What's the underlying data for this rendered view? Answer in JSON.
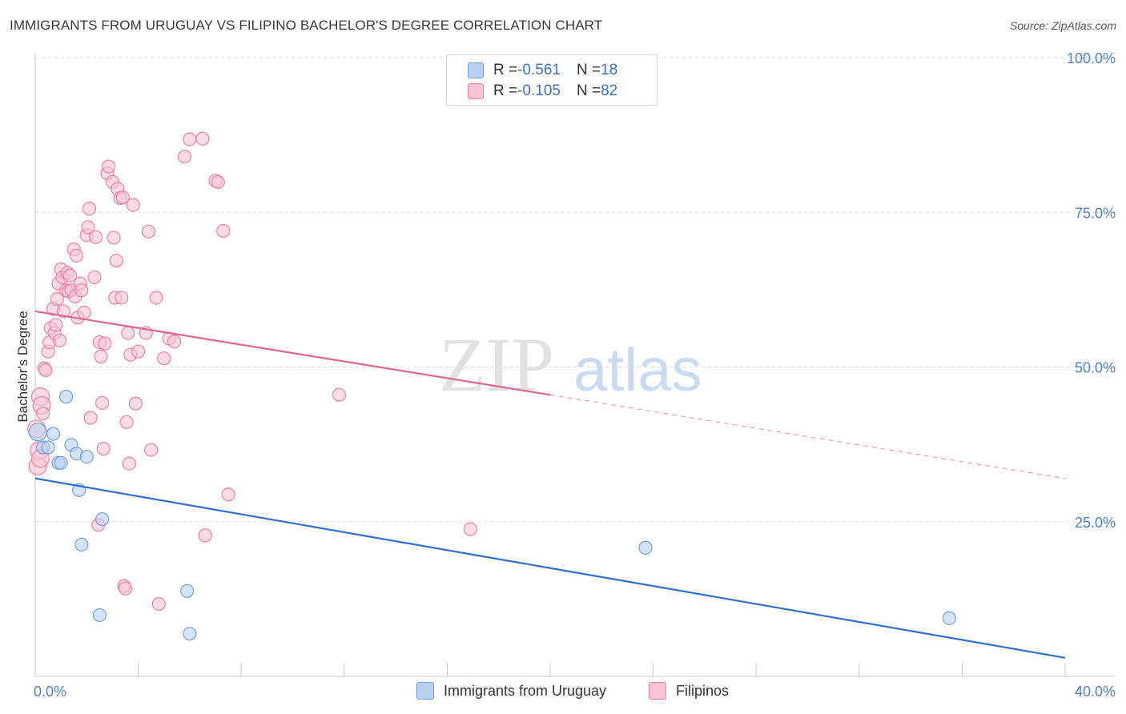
{
  "title": "IMMIGRANTS FROM URUGUAY VS FILIPINO BACHELOR'S DEGREE CORRELATION CHART",
  "source": "Source: ZipAtlas.com",
  "watermark": {
    "zip": "ZIP",
    "atlas": "atlas"
  },
  "legend_top": {
    "rows": [
      {
        "r_label": "R = ",
        "r_value": "-0.561",
        "n_label": "N = ",
        "n_value": "18"
      },
      {
        "r_label": "R = ",
        "r_value": "-0.105",
        "n_label": "N = ",
        "n_value": "82"
      }
    ]
  },
  "chart_data": {
    "type": "scatter",
    "title": "IMMIGRANTS FROM URUGUAY VS FILIPINO BACHELOR'S DEGREE CORRELATION CHART",
    "xlabel": "",
    "ylabel": "Bachelor's Degree",
    "xlim": [
      0,
      40
    ],
    "ylim": [
      0,
      100
    ],
    "x_tick_labels": [
      {
        "value": 0,
        "label": "0.0%"
      },
      {
        "value": 40,
        "label": "40.0%"
      }
    ],
    "y_tick_labels": [
      {
        "value": 25,
        "label": "25.0%"
      },
      {
        "value": 50,
        "label": "50.0%"
      },
      {
        "value": 75,
        "label": "75.0%"
      },
      {
        "value": 100,
        "label": "100.0%"
      }
    ],
    "grid": true,
    "series": [
      {
        "name": "Immigrants from Uruguay",
        "color": "#6fa0de",
        "fill": "#b9d0f2",
        "points": [
          [
            0.1,
            39.5
          ],
          [
            0.3,
            37
          ],
          [
            0.5,
            37
          ],
          [
            0.7,
            39.2
          ],
          [
            0.9,
            34.5
          ],
          [
            1.0,
            34.5
          ],
          [
            1.2,
            45.2
          ],
          [
            1.4,
            37.4
          ],
          [
            1.6,
            36
          ],
          [
            1.7,
            30.1
          ],
          [
            1.8,
            21.3
          ],
          [
            2.0,
            35.5
          ],
          [
            2.5,
            9.9
          ],
          [
            2.6,
            25.4
          ],
          [
            5.9,
            13.8
          ],
          [
            6.0,
            6.9
          ],
          [
            23.7,
            20.8
          ],
          [
            35.5,
            9.4
          ]
        ],
        "trend": {
          "x": [
            0,
            40
          ],
          "y": [
            32,
            3
          ],
          "dashed_from": null
        }
      },
      {
        "name": "Filipinos",
        "color": "#ec7fa3",
        "fill": "#f8c3d4",
        "points": [
          [
            0.05,
            40
          ],
          [
            0.1,
            34
          ],
          [
            0.2,
            45.2
          ],
          [
            0.25,
            43.8
          ],
          [
            0.35,
            49.8
          ],
          [
            0.4,
            49.5
          ],
          [
            0.5,
            52.5
          ],
          [
            0.55,
            54
          ],
          [
            0.6,
            56.3
          ],
          [
            0.7,
            59.4
          ],
          [
            0.75,
            55.5
          ],
          [
            0.8,
            56.8
          ],
          [
            0.85,
            61
          ],
          [
            0.9,
            63.5
          ],
          [
            0.95,
            54.3
          ],
          [
            1.0,
            65.8
          ],
          [
            1.05,
            64.5
          ],
          [
            1.1,
            59
          ],
          [
            1.2,
            62.4
          ],
          [
            1.25,
            65.2
          ],
          [
            1.3,
            62.2
          ],
          [
            1.35,
            64.8
          ],
          [
            1.4,
            62.4
          ],
          [
            1.5,
            69
          ],
          [
            1.55,
            61.4
          ],
          [
            1.6,
            68
          ],
          [
            1.65,
            58
          ],
          [
            1.75,
            63.5
          ],
          [
            1.8,
            62.4
          ],
          [
            1.9,
            58.8
          ],
          [
            2.0,
            71.3
          ],
          [
            2.05,
            72.6
          ],
          [
            2.1,
            75.6
          ],
          [
            2.15,
            41.8
          ],
          [
            2.3,
            64.5
          ],
          [
            2.35,
            71
          ],
          [
            2.45,
            24.5
          ],
          [
            2.5,
            54
          ],
          [
            2.55,
            51.7
          ],
          [
            2.6,
            44.2
          ],
          [
            2.65,
            36.8
          ],
          [
            2.7,
            53.8
          ],
          [
            2.8,
            81.3
          ],
          [
            2.85,
            82.4
          ],
          [
            3.0,
            79.9
          ],
          [
            3.05,
            70.9
          ],
          [
            3.1,
            61.2
          ],
          [
            3.15,
            67.2
          ],
          [
            3.2,
            78.8
          ],
          [
            3.3,
            77.3
          ],
          [
            3.35,
            61.2
          ],
          [
            3.4,
            77.4
          ],
          [
            3.45,
            14.6
          ],
          [
            3.5,
            14.2
          ],
          [
            3.55,
            41.1
          ],
          [
            3.6,
            55.5
          ],
          [
            3.65,
            34.4
          ],
          [
            3.7,
            52
          ],
          [
            3.8,
            76.2
          ],
          [
            3.9,
            44.1
          ],
          [
            4.0,
            52.5
          ],
          [
            4.3,
            55.5
          ],
          [
            4.4,
            71.9
          ],
          [
            4.5,
            36.6
          ],
          [
            4.7,
            61.2
          ],
          [
            4.8,
            11.7
          ],
          [
            5.0,
            51.4
          ],
          [
            5.2,
            54.6
          ],
          [
            5.4,
            54.1
          ],
          [
            5.8,
            84
          ],
          [
            6.0,
            86.8
          ],
          [
            6.5,
            86.9
          ],
          [
            6.6,
            22.8
          ],
          [
            7.0,
            80.1
          ],
          [
            7.1,
            79.9
          ],
          [
            7.3,
            72
          ],
          [
            7.5,
            29.4
          ],
          [
            11.8,
            45.5
          ],
          [
            16.9,
            23.8
          ],
          [
            0.15,
            36.5
          ],
          [
            0.2,
            35.2
          ],
          [
            0.3,
            42.5
          ]
        ],
        "trend": {
          "x": [
            0,
            40
          ],
          "y": [
            59,
            32
          ],
          "dashed_from": 20
        }
      }
    ],
    "legend": {
      "placement": "bottom",
      "entries": [
        "Immigrants from Uruguay",
        "Filipinos"
      ]
    }
  },
  "bottom_legend": [
    {
      "label": "Immigrants from Uruguay"
    },
    {
      "label": "Filipinos"
    }
  ]
}
